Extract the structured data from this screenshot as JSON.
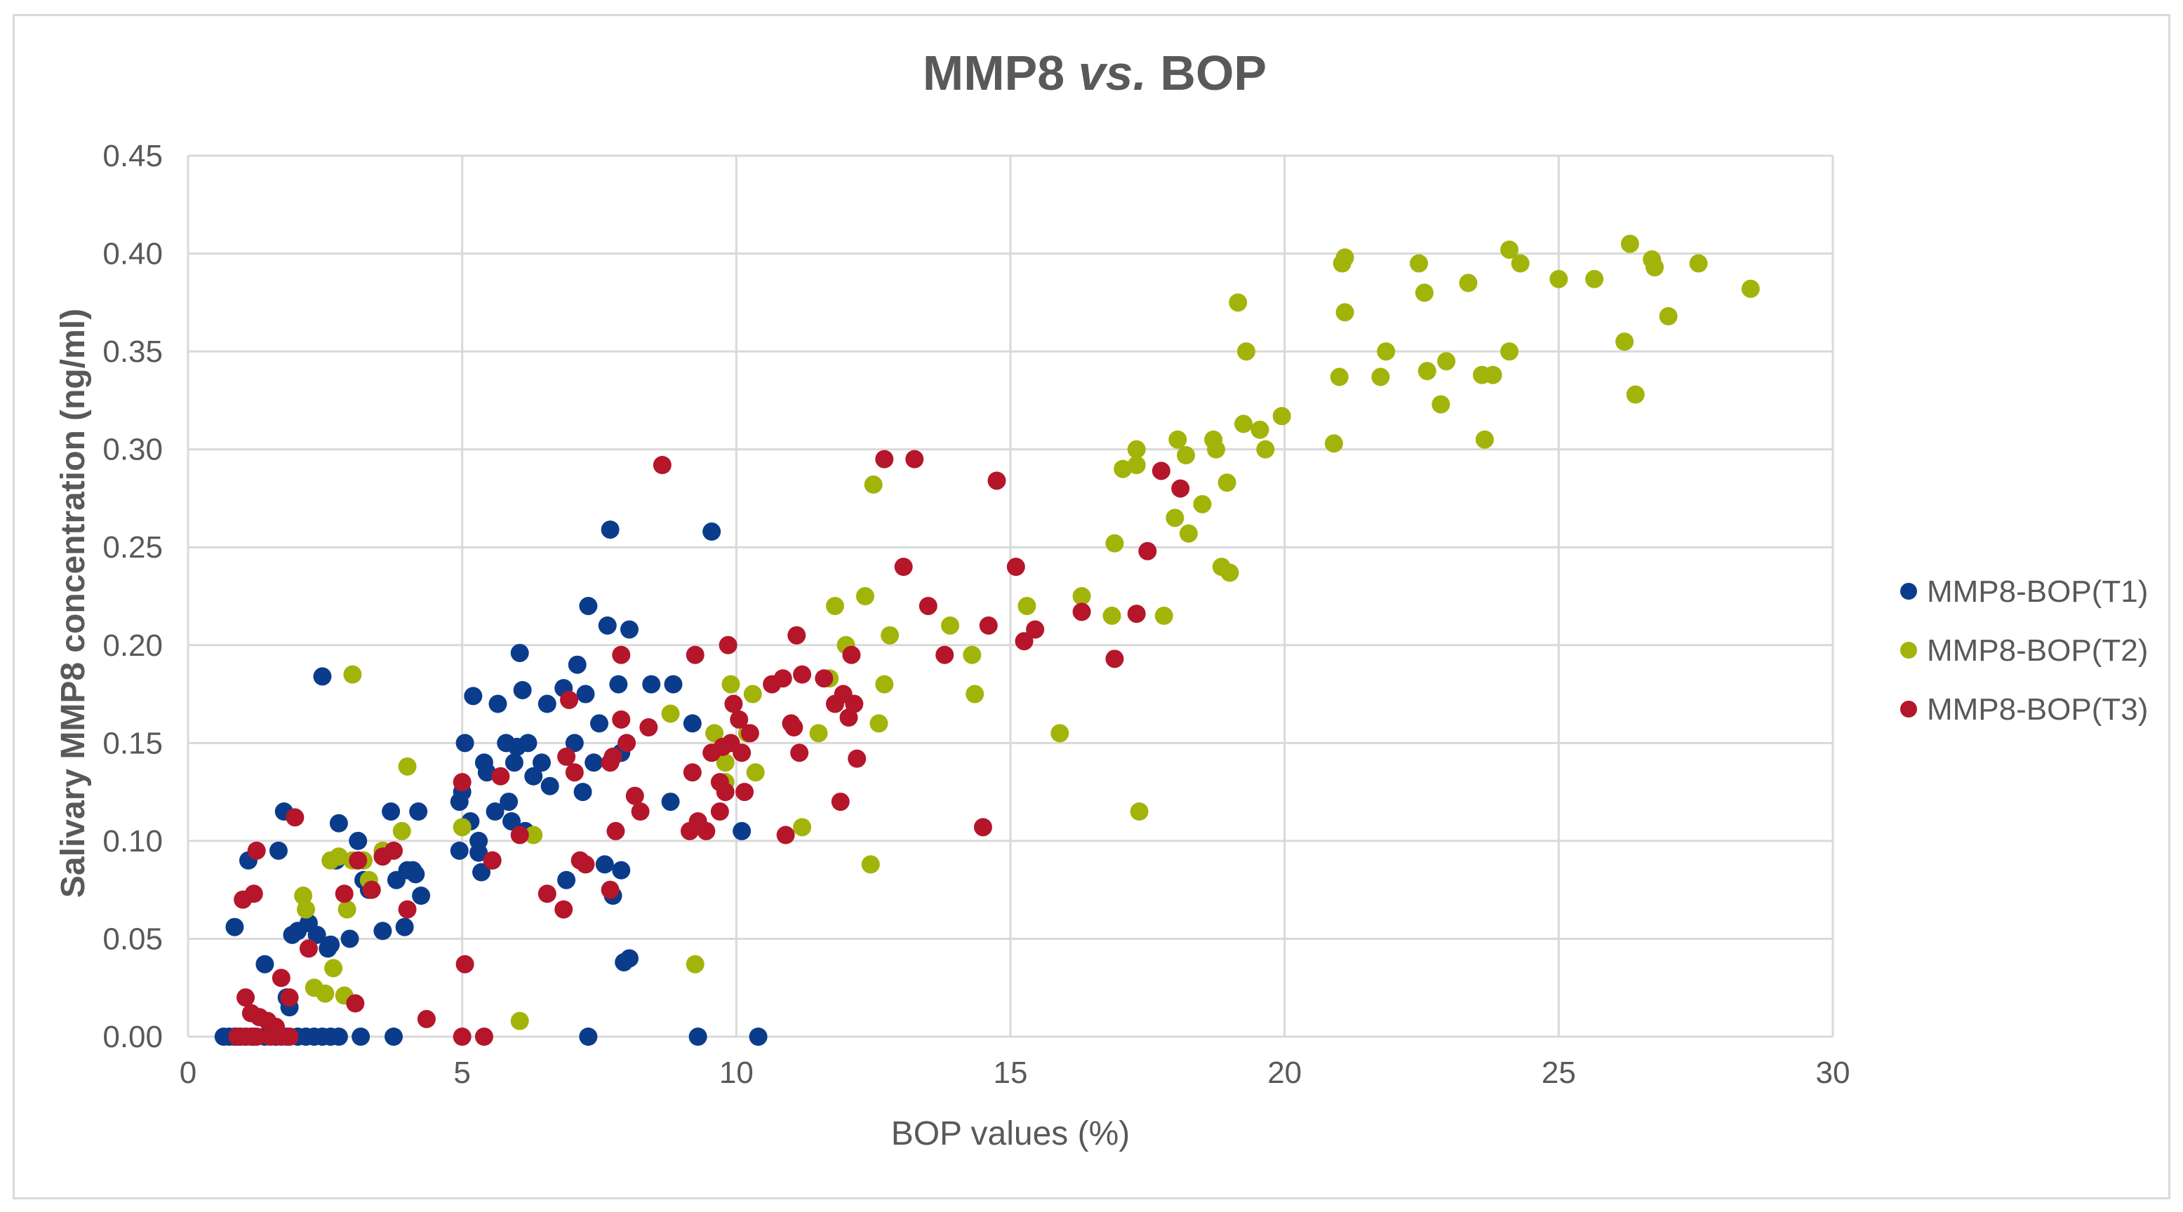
{
  "chart_data": {
    "type": "scatter",
    "title_main": "MMP8 ",
    "title_italic": "vs.",
    "title_end": " BOP",
    "xlabel": "BOP values (%)",
    "ylabel": "Salivary MMP8 concentration (ng/ml)",
    "xlim": [
      0,
      30
    ],
    "ylim": [
      0,
      0.45
    ],
    "xticks": [
      0,
      5,
      10,
      15,
      20,
      25,
      30
    ],
    "yticks": [
      "0.00",
      "0.05",
      "0.10",
      "0.15",
      "0.20",
      "0.25",
      "0.30",
      "0.35",
      "0.40",
      "0.45"
    ],
    "grid": true,
    "legend_position": "right",
    "series": [
      {
        "name": "MMP8-BOP(T1)",
        "color": "#0b3c8c",
        "points": [
          [
            0.65,
            0.0
          ],
          [
            0.75,
            0.0
          ],
          [
            0.85,
            0.0
          ],
          [
            0.95,
            0.0
          ],
          [
            1.05,
            0.0
          ],
          [
            1.2,
            0.0
          ],
          [
            1.4,
            0.0
          ],
          [
            1.6,
            0.0
          ],
          [
            1.8,
            0.0
          ],
          [
            2.0,
            0.0
          ],
          [
            2.15,
            0.0
          ],
          [
            2.3,
            0.0
          ],
          [
            2.45,
            0.0
          ],
          [
            2.6,
            0.0
          ],
          [
            2.75,
            0.0
          ],
          [
            3.15,
            0.0
          ],
          [
            3.75,
            0.0
          ],
          [
            7.3,
            0.0
          ],
          [
            9.3,
            0.0
          ],
          [
            10.4,
            0.0
          ],
          [
            0.85,
            0.056
          ],
          [
            1.1,
            0.09
          ],
          [
            1.4,
            0.037
          ],
          [
            1.65,
            0.095
          ],
          [
            1.75,
            0.115
          ],
          [
            1.8,
            0.02
          ],
          [
            1.85,
            0.015
          ],
          [
            1.9,
            0.052
          ],
          [
            2.0,
            0.054
          ],
          [
            2.2,
            0.058
          ],
          [
            2.35,
            0.052
          ],
          [
            2.45,
            0.184
          ],
          [
            2.55,
            0.045
          ],
          [
            2.6,
            0.047
          ],
          [
            2.7,
            0.09
          ],
          [
            2.75,
            0.109
          ],
          [
            2.95,
            0.05
          ],
          [
            3.1,
            0.1
          ],
          [
            3.2,
            0.08
          ],
          [
            3.3,
            0.075
          ],
          [
            3.55,
            0.054
          ],
          [
            3.7,
            0.115
          ],
          [
            3.8,
            0.08
          ],
          [
            3.95,
            0.056
          ],
          [
            4.0,
            0.085
          ],
          [
            4.1,
            0.085
          ],
          [
            4.15,
            0.083
          ],
          [
            4.2,
            0.115
          ],
          [
            4.25,
            0.072
          ],
          [
            4.95,
            0.095
          ],
          [
            4.95,
            0.12
          ],
          [
            5.0,
            0.125
          ],
          [
            5.05,
            0.15
          ],
          [
            5.15,
            0.11
          ],
          [
            5.2,
            0.174
          ],
          [
            5.3,
            0.1
          ],
          [
            5.3,
            0.094
          ],
          [
            5.35,
            0.084
          ],
          [
            5.4,
            0.14
          ],
          [
            5.45,
            0.135
          ],
          [
            5.55,
            0.09
          ],
          [
            5.6,
            0.115
          ],
          [
            5.65,
            0.17
          ],
          [
            5.8,
            0.15
          ],
          [
            5.85,
            0.12
          ],
          [
            5.9,
            0.11
          ],
          [
            5.95,
            0.14
          ],
          [
            6.0,
            0.148
          ],
          [
            6.05,
            0.196
          ],
          [
            6.1,
            0.177
          ],
          [
            6.15,
            0.105
          ],
          [
            6.2,
            0.15
          ],
          [
            6.3,
            0.133
          ],
          [
            6.45,
            0.14
          ],
          [
            6.55,
            0.17
          ],
          [
            6.6,
            0.128
          ],
          [
            6.85,
            0.178
          ],
          [
            6.9,
            0.08
          ],
          [
            7.05,
            0.15
          ],
          [
            7.1,
            0.19
          ],
          [
            7.2,
            0.125
          ],
          [
            7.25,
            0.175
          ],
          [
            7.3,
            0.22
          ],
          [
            7.4,
            0.14
          ],
          [
            7.5,
            0.16
          ],
          [
            7.6,
            0.088
          ],
          [
            7.65,
            0.21
          ],
          [
            7.7,
            0.259
          ],
          [
            7.75,
            0.072
          ],
          [
            7.85,
            0.18
          ],
          [
            7.9,
            0.145
          ],
          [
            7.9,
            0.085
          ],
          [
            7.95,
            0.038
          ],
          [
            8.05,
            0.04
          ],
          [
            8.05,
            0.208
          ],
          [
            8.45,
            0.18
          ],
          [
            8.8,
            0.12
          ],
          [
            8.85,
            0.18
          ],
          [
            9.2,
            0.16
          ],
          [
            9.55,
            0.258
          ],
          [
            10.1,
            0.105
          ]
        ]
      },
      {
        "name": "MMP8-BOP(T2)",
        "color": "#a2b40a",
        "points": [
          [
            2.1,
            0.072
          ],
          [
            2.15,
            0.065
          ],
          [
            2.3,
            0.025
          ],
          [
            2.5,
            0.022
          ],
          [
            2.6,
            0.09
          ],
          [
            2.65,
            0.035
          ],
          [
            2.75,
            0.092
          ],
          [
            2.85,
            0.021
          ],
          [
            2.9,
            0.065
          ],
          [
            3.0,
            0.185
          ],
          [
            3.0,
            0.09
          ],
          [
            3.2,
            0.09
          ],
          [
            3.3,
            0.08
          ],
          [
            3.55,
            0.095
          ],
          [
            3.9,
            0.105
          ],
          [
            4.0,
            0.138
          ],
          [
            5.0,
            0.107
          ],
          [
            6.05,
            0.008
          ],
          [
            6.3,
            0.103
          ],
          [
            8.8,
            0.165
          ],
          [
            9.25,
            0.037
          ],
          [
            9.6,
            0.155
          ],
          [
            9.8,
            0.14
          ],
          [
            9.8,
            0.13
          ],
          [
            9.9,
            0.18
          ],
          [
            10.2,
            0.155
          ],
          [
            10.35,
            0.135
          ],
          [
            10.3,
            0.175
          ],
          [
            11.2,
            0.107
          ],
          [
            11.5,
            0.155
          ],
          [
            11.7,
            0.183
          ],
          [
            11.8,
            0.22
          ],
          [
            12.0,
            0.2
          ],
          [
            12.35,
            0.225
          ],
          [
            12.45,
            0.088
          ],
          [
            12.5,
            0.282
          ],
          [
            12.6,
            0.16
          ],
          [
            12.7,
            0.18
          ],
          [
            12.8,
            0.205
          ],
          [
            13.9,
            0.21
          ],
          [
            14.3,
            0.195
          ],
          [
            14.35,
            0.175
          ],
          [
            15.3,
            0.22
          ],
          [
            15.9,
            0.155
          ],
          [
            16.3,
            0.225
          ],
          [
            16.85,
            0.215
          ],
          [
            16.9,
            0.252
          ],
          [
            17.05,
            0.29
          ],
          [
            17.3,
            0.3
          ],
          [
            17.3,
            0.292
          ],
          [
            17.35,
            0.115
          ],
          [
            17.8,
            0.215
          ],
          [
            18.0,
            0.265
          ],
          [
            18.05,
            0.305
          ],
          [
            18.2,
            0.297
          ],
          [
            18.25,
            0.257
          ],
          [
            18.5,
            0.272
          ],
          [
            18.7,
            0.305
          ],
          [
            18.75,
            0.3
          ],
          [
            18.85,
            0.24
          ],
          [
            18.95,
            0.283
          ],
          [
            19.0,
            0.237
          ],
          [
            19.15,
            0.375
          ],
          [
            19.25,
            0.313
          ],
          [
            19.3,
            0.35
          ],
          [
            19.55,
            0.31
          ],
          [
            19.65,
            0.3
          ],
          [
            19.95,
            0.317
          ],
          [
            20.9,
            0.303
          ],
          [
            21.0,
            0.337
          ],
          [
            21.05,
            0.395
          ],
          [
            21.1,
            0.37
          ],
          [
            21.1,
            0.398
          ],
          [
            21.75,
            0.337
          ],
          [
            21.85,
            0.35
          ],
          [
            22.45,
            0.395
          ],
          [
            22.55,
            0.38
          ],
          [
            22.6,
            0.34
          ],
          [
            22.85,
            0.323
          ],
          [
            22.95,
            0.345
          ],
          [
            23.35,
            0.385
          ],
          [
            23.6,
            0.338
          ],
          [
            23.65,
            0.305
          ],
          [
            23.8,
            0.338
          ],
          [
            24.1,
            0.35
          ],
          [
            24.1,
            0.402
          ],
          [
            24.3,
            0.395
          ],
          [
            25.0,
            0.387
          ],
          [
            25.65,
            0.387
          ],
          [
            26.2,
            0.355
          ],
          [
            26.3,
            0.405
          ],
          [
            26.4,
            0.328
          ],
          [
            26.7,
            0.397
          ],
          [
            26.75,
            0.393
          ],
          [
            27.0,
            0.368
          ],
          [
            27.55,
            0.395
          ],
          [
            28.5,
            0.382
          ]
        ]
      },
      {
        "name": "MMP8-BOP(T3)",
        "color": "#b5162a",
        "points": [
          [
            0.9,
            0.0
          ],
          [
            1.05,
            0.0
          ],
          [
            1.15,
            0.0
          ],
          [
            1.25,
            0.0
          ],
          [
            1.5,
            0.0
          ],
          [
            1.7,
            0.0
          ],
          [
            1.85,
            0.0
          ],
          [
            5.0,
            0.0
          ],
          [
            5.4,
            0.0
          ],
          [
            1.0,
            0.07
          ],
          [
            1.05,
            0.02
          ],
          [
            1.15,
            0.012
          ],
          [
            1.2,
            0.073
          ],
          [
            1.25,
            0.095
          ],
          [
            1.3,
            0.01
          ],
          [
            1.45,
            0.008
          ],
          [
            1.6,
            0.005
          ],
          [
            1.7,
            0.03
          ],
          [
            1.85,
            0.02
          ],
          [
            1.95,
            0.112
          ],
          [
            2.2,
            0.045
          ],
          [
            2.85,
            0.073
          ],
          [
            3.05,
            0.017
          ],
          [
            3.1,
            0.09
          ],
          [
            3.35,
            0.075
          ],
          [
            3.55,
            0.092
          ],
          [
            3.75,
            0.095
          ],
          [
            4.0,
            0.065
          ],
          [
            4.35,
            0.009
          ],
          [
            5.0,
            0.13
          ],
          [
            5.05,
            0.037
          ],
          [
            5.55,
            0.09
          ],
          [
            5.7,
            0.133
          ],
          [
            6.05,
            0.103
          ],
          [
            6.55,
            0.073
          ],
          [
            6.85,
            0.065
          ],
          [
            6.9,
            0.143
          ],
          [
            6.95,
            0.172
          ],
          [
            7.05,
            0.135
          ],
          [
            7.15,
            0.09
          ],
          [
            7.25,
            0.088
          ],
          [
            7.7,
            0.075
          ],
          [
            7.7,
            0.14
          ],
          [
            7.75,
            0.143
          ],
          [
            7.8,
            0.105
          ],
          [
            7.9,
            0.195
          ],
          [
            7.9,
            0.162
          ],
          [
            8.0,
            0.15
          ],
          [
            8.15,
            0.123
          ],
          [
            8.25,
            0.115
          ],
          [
            8.4,
            0.158
          ],
          [
            8.65,
            0.292
          ],
          [
            9.15,
            0.105
          ],
          [
            9.2,
            0.135
          ],
          [
            9.25,
            0.195
          ],
          [
            9.3,
            0.11
          ],
          [
            9.45,
            0.105
          ],
          [
            9.55,
            0.145
          ],
          [
            9.7,
            0.115
          ],
          [
            9.7,
            0.13
          ],
          [
            9.75,
            0.148
          ],
          [
            9.8,
            0.125
          ],
          [
            9.85,
            0.2
          ],
          [
            9.9,
            0.15
          ],
          [
            9.95,
            0.17
          ],
          [
            10.05,
            0.162
          ],
          [
            10.1,
            0.145
          ],
          [
            10.15,
            0.125
          ],
          [
            10.25,
            0.155
          ],
          [
            10.65,
            0.18
          ],
          [
            10.85,
            0.183
          ],
          [
            10.9,
            0.103
          ],
          [
            11.0,
            0.16
          ],
          [
            11.05,
            0.158
          ],
          [
            11.1,
            0.205
          ],
          [
            11.15,
            0.145
          ],
          [
            11.2,
            0.185
          ],
          [
            11.6,
            0.183
          ],
          [
            11.8,
            0.17
          ],
          [
            11.9,
            0.12
          ],
          [
            11.95,
            0.175
          ],
          [
            12.05,
            0.163
          ],
          [
            12.1,
            0.195
          ],
          [
            12.15,
            0.17
          ],
          [
            12.2,
            0.142
          ],
          [
            12.7,
            0.295
          ],
          [
            13.05,
            0.24
          ],
          [
            13.25,
            0.295
          ],
          [
            13.5,
            0.22
          ],
          [
            13.8,
            0.195
          ],
          [
            14.5,
            0.107
          ],
          [
            14.6,
            0.21
          ],
          [
            14.75,
            0.284
          ],
          [
            15.1,
            0.24
          ],
          [
            15.25,
            0.202
          ],
          [
            15.45,
            0.208
          ],
          [
            16.3,
            0.217
          ],
          [
            16.9,
            0.193
          ],
          [
            17.3,
            0.216
          ],
          [
            17.5,
            0.248
          ],
          [
            17.75,
            0.289
          ],
          [
            18.1,
            0.28
          ]
        ]
      }
    ]
  }
}
